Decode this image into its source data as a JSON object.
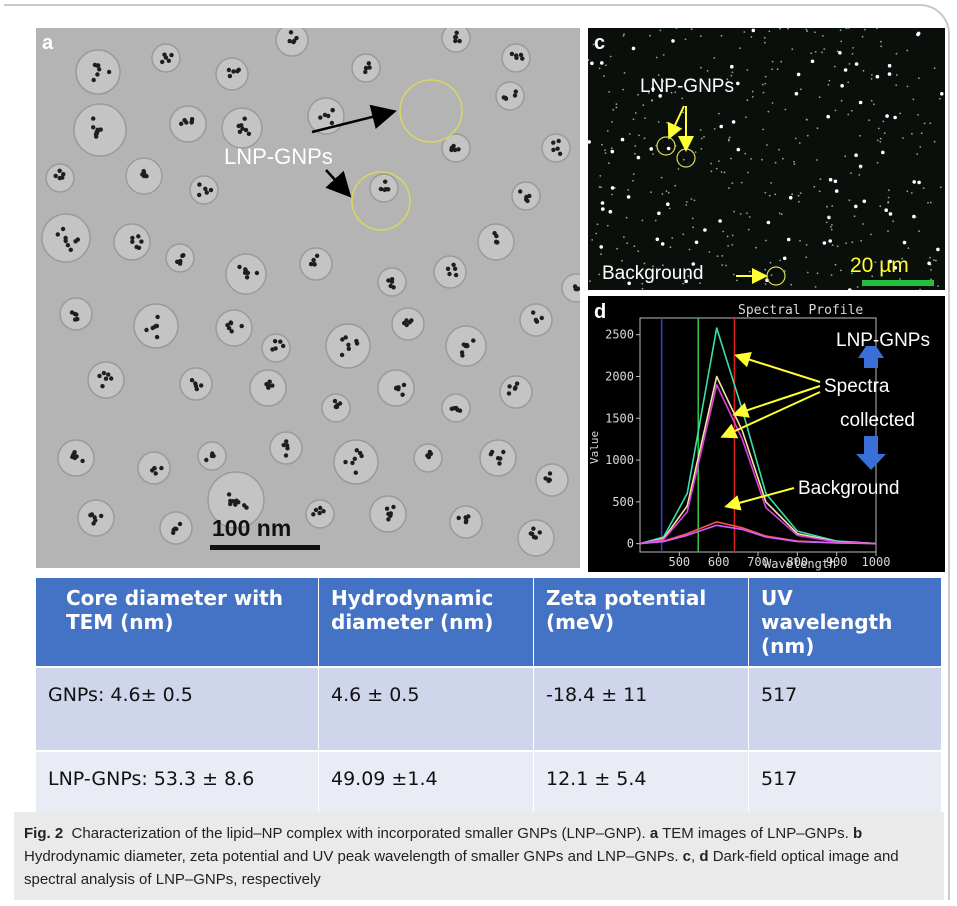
{
  "panels": {
    "a": {
      "label": "a",
      "annotation": "LNP-GNPs",
      "scale": "100 nm"
    },
    "c": {
      "label": "c",
      "annotation": "LNP-GNPs",
      "background": "Background",
      "scale": "20 µm"
    },
    "d": {
      "label": "d",
      "title": "Spectral Profile",
      "ylabel": "Value",
      "xlabel": "Wavelength",
      "ann_lnp": "LNP-GNPs",
      "ann_spectra_1": "Spectra",
      "ann_spectra_2": "collected",
      "ann_bg": "Background"
    },
    "b": {
      "label": "b"
    }
  },
  "chart_data": {
    "type": "line",
    "title": "Spectral Profile",
    "xlabel": "Wavelength",
    "ylabel": "Value",
    "xlim": [
      400,
      1000
    ],
    "ylim": [
      -100,
      2700
    ],
    "xticks": [
      500,
      600,
      700,
      800,
      900,
      1000
    ],
    "yticks": [
      0,
      500,
      1000,
      1500,
      2000,
      2500
    ],
    "vlines": [
      {
        "x": 455,
        "color": "#2f3fd9"
      },
      {
        "x": 548,
        "color": "#2ecc40"
      },
      {
        "x": 640,
        "color": "#e02020"
      }
    ],
    "series": [
      {
        "color": "#38e0a8",
        "peak_x": 590,
        "values": [
          0,
          80,
          600,
          2580,
          1600,
          600,
          150,
          30,
          0
        ]
      },
      {
        "color": "#f2e6a0",
        "peak_x": 600,
        "values": [
          0,
          60,
          450,
          2000,
          1350,
          500,
          120,
          25,
          0
        ]
      },
      {
        "color": "#e040e0",
        "peak_x": 605,
        "values": [
          0,
          50,
          380,
          1900,
          1250,
          430,
          100,
          20,
          0
        ]
      },
      {
        "color": "#ff5050",
        "peak_x": 590,
        "values": [
          0,
          30,
          120,
          260,
          190,
          90,
          30,
          10,
          0
        ]
      },
      {
        "color": "#d060ff",
        "peak_x": 600,
        "values": [
          0,
          25,
          100,
          220,
          170,
          80,
          25,
          8,
          0
        ]
      }
    ],
    "series_x": [
      400,
      460,
      520,
      595,
      660,
      720,
      800,
      900,
      1000
    ]
  },
  "table": {
    "headers": [
      "Core diameter with TEM (nm)",
      "Hydrodynamic diameter (nm)",
      "Zeta potential (meV)",
      "UV wavelength (nm)"
    ],
    "rows": [
      [
        "GNPs: 4.6± 0.5",
        "4.6 ± 0.5",
        "-18.4 ± 11",
        "517"
      ],
      [
        "LNP-GNPs: 53.3 ± 8.6",
        "49.09 ±1.4",
        "12.1 ± 5.4",
        "517"
      ]
    ]
  },
  "caption": {
    "fig": "Fig. 2",
    "t1": "Characterization of the lipid–NP complex with incorporated smaller GNPs (LNP–GNP).",
    "a": "a",
    "t2": "TEM images of LNP–GNPs.",
    "b": "b",
    "t3": "Hydrodynamic diameter, zeta potential and UV peak wavelength of smaller GNPs and LNP–GNPs.",
    "c": "c",
    "sep": ",",
    "d": "d",
    "t4": "Dark-field optical image and spectral analysis of LNP–GNPs, respectively"
  },
  "colors": {
    "table_header": "#4472c4",
    "annotation_yellow": "#ffff33",
    "circle_yellow": "#d8d860"
  }
}
